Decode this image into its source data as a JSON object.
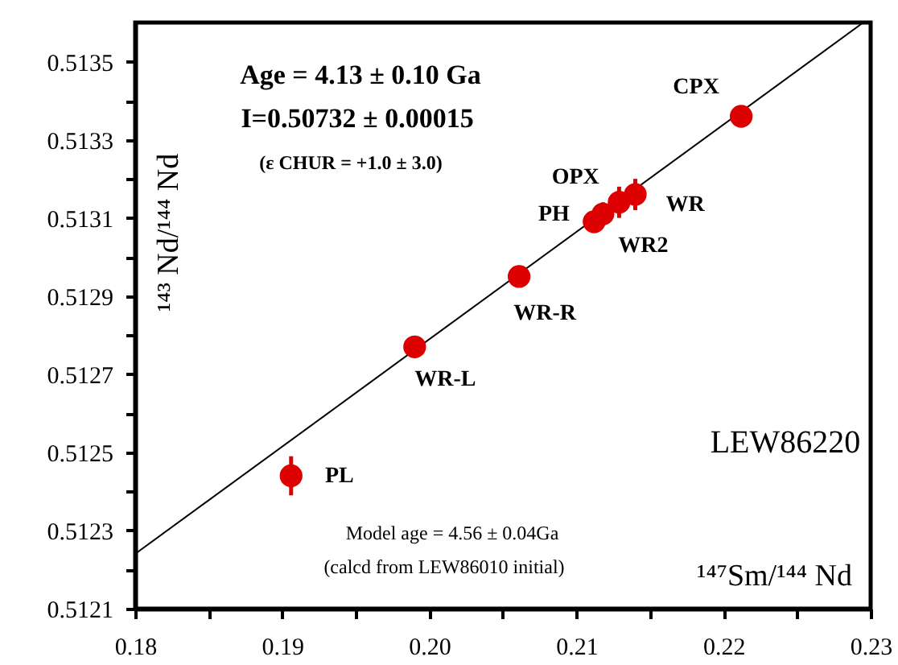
{
  "chart_data": {
    "type": "scatter",
    "xlabel": "¹⁴⁷Sm/¹⁴⁴ Nd",
    "ylabel": "¹⁴³ Nd/¹⁴⁴ Nd",
    "xlim": [
      0.18,
      0.23
    ],
    "ylim": [
      0.5121,
      0.5136
    ],
    "xticks": [
      0.18,
      {
        "value": 0.185,
        "label": null
      },
      0.19,
      {
        "value": 0.195,
        "label": null
      },
      {
        "value": 0.2,
        "label": "0.20"
      },
      {
        "value": 0.205,
        "label": null
      },
      0.21,
      {
        "value": 0.215,
        "label": null
      },
      0.22,
      {
        "value": 0.225,
        "label": null
      },
      0.23
    ],
    "yticks": [
      0.5121,
      {
        "value": 0.5122,
        "label": null
      },
      0.5123,
      {
        "value": 0.5124,
        "label": null
      },
      0.5125,
      {
        "value": 0.5126,
        "label": null
      },
      0.5127,
      {
        "value": 0.5128,
        "label": null
      },
      0.5129,
      {
        "value": 0.513,
        "label": null
      },
      0.5131,
      {
        "value": 0.5132,
        "label": null
      },
      0.5133,
      {
        "value": 0.5134,
        "label": null
      },
      0.5135
    ],
    "series": [
      {
        "color": "#dd0000",
        "marker": "circle",
        "x": [
          0.1906,
          0.199,
          0.2061,
          0.2112,
          0.2118,
          0.2129,
          0.214,
          0.2212
        ],
        "values": [
          0.51244,
          0.51277,
          0.51295,
          0.51309,
          0.51311,
          0.51314,
          0.51316,
          0.51336
        ],
        "errors": [
          5e-05,
          null,
          null,
          null,
          3e-05,
          4e-05,
          4e-05,
          null
        ]
      },
      {
        "type": "line",
        "color": "#000000",
        "line_style": "solid",
        "marker": "none",
        "x": [
          0.18,
          0.2295
        ],
        "values": [
          0.51224,
          0.5136
        ]
      }
    ],
    "annotations": [
      {
        "text": "PL",
        "x": 0.1906,
        "y": 0.51244
      },
      {
        "text": "WR-L",
        "x": 0.199,
        "y": 0.51277
      },
      {
        "text": "WR-R",
        "x": 0.2061,
        "y": 0.51295
      },
      {
        "text": "PH",
        "x": 0.2112,
        "y": 0.51309
      },
      {
        "text": "OPX",
        "x": 0.2118,
        "y": 0.51311
      },
      {
        "text": "WR2",
        "x": 0.2129,
        "y": 0.51314
      },
      {
        "text": "WR",
        "x": 0.214,
        "y": 0.51316
      },
      {
        "text": "CPX",
        "x": 0.2212,
        "y": 0.51336
      },
      "Age = 4.13 ± 0.10 Ga",
      "I=0.50732 ± 0.00015",
      "(ε CHUR = +1.0 ± 3.0)",
      "LEW86220",
      "Model age = 4.56 ± 0.04Ga",
      "(calcd from LEW86010 initial)"
    ]
  }
}
